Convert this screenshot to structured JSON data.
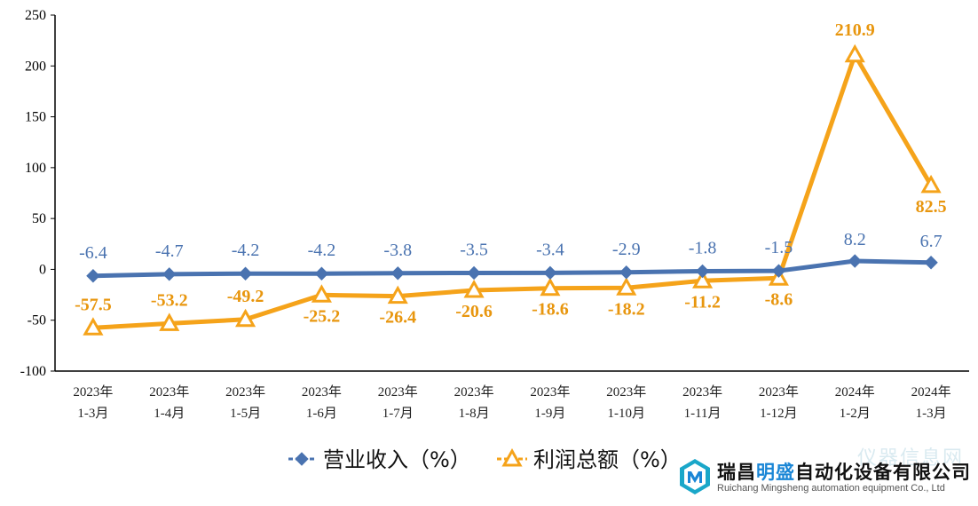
{
  "chart_data": {
    "type": "line",
    "categories": [
      [
        "2023年",
        "1-3月"
      ],
      [
        "2023年",
        "1-4月"
      ],
      [
        "2023年",
        "1-5月"
      ],
      [
        "2023年",
        "1-6月"
      ],
      [
        "2023年",
        "1-7月"
      ],
      [
        "2023年",
        "1-8月"
      ],
      [
        "2023年",
        "1-9月"
      ],
      [
        "2023年",
        "1-10月"
      ],
      [
        "2023年",
        "1-11月"
      ],
      [
        "2023年",
        "1-12月"
      ],
      [
        "2024年",
        "1-2月"
      ],
      [
        "2024年",
        "1-3月"
      ]
    ],
    "series": [
      {
        "name": "营业收入（%）",
        "color": "#4a73b0",
        "marker": "diamond",
        "values": [
          -6.4,
          -4.7,
          -4.2,
          -4.2,
          -3.8,
          -3.5,
          -3.4,
          -2.9,
          -1.8,
          -1.5,
          8.2,
          6.7
        ],
        "labels": [
          "-6.4",
          "-4.7",
          "-4.2",
          "-4.2",
          "-3.8",
          "-3.5",
          "-3.4",
          "-2.9",
          "-1.8",
          "-1.5",
          "8.2",
          "6.7"
        ]
      },
      {
        "name": "利润总额（%）",
        "color": "#f5a31a",
        "marker": "triangle",
        "values": [
          -57.5,
          -53.2,
          -49.2,
          -25.2,
          -26.4,
          -20.6,
          -18.6,
          -18.2,
          -11.2,
          -8.6,
          210.9,
          82.5
        ],
        "labels": [
          "-57.5",
          "-53.2",
          "-49.2",
          "-25.2",
          "-26.4",
          "-20.6",
          "-18.6",
          "-18.2",
          "-11.2",
          "-8.6",
          "210.9",
          "82.5"
        ]
      }
    ],
    "yticks": [
      "250",
      "200",
      "150",
      "100",
      "50",
      "0",
      "-50",
      "-100"
    ],
    "ylim": [
      -100,
      250
    ],
    "grid": false,
    "legend": "bottom-center"
  },
  "logo": {
    "name_part1": "瑞昌",
    "name_highlight": "明盛",
    "name_part2": "自动化设备有限公司",
    "english": "Ruichang Mingsheng automation equipment Co., Ltd",
    "watermark": "仪器信息网"
  }
}
